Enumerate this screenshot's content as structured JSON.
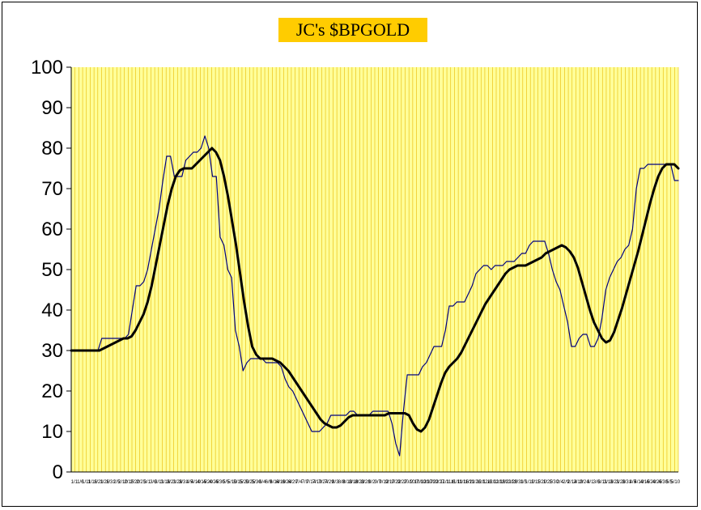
{
  "chart_data": {
    "type": "line",
    "title": "JC's $BPGOLD",
    "xlabel": "",
    "ylabel": "",
    "ylim": [
      0,
      100
    ],
    "yticks": [
      0,
      10,
      20,
      30,
      40,
      50,
      60,
      70,
      80,
      90,
      100
    ],
    "grid": "vertical lines",
    "legend": "none",
    "colors": {
      "plot_bg": "#ffff99",
      "grid": "#e8b800",
      "title_bg": "#ffcc00",
      "series_raw": "#000080",
      "series_smooth": "#000000"
    },
    "x_tick_labels": [
      "1/1",
      "1/6",
      "1/11",
      "1/16",
      "1/21",
      "1/26",
      "1/31",
      "2/5",
      "2/10",
      "2/15",
      "2/20",
      "2/25",
      "3/1",
      "3/6",
      "3/11",
      "3/16",
      "3/21",
      "3/26",
      "3/31",
      "4/5",
      "4/10",
      "4/15",
      "4/20",
      "4/25",
      "4/30",
      "5/5",
      "5/10",
      "5/15",
      "5/20",
      "5/25",
      "5/30",
      "6/4",
      "6/9",
      "6/14",
      "6/19",
      "6/24",
      "6/29",
      "7/4",
      "7/9",
      "7/14",
      "7/19",
      "7/24",
      "7/29",
      "8/3",
      "8/8",
      "8/13",
      "8/18",
      "8/23",
      "8/28",
      "9/2",
      "9/7",
      "9/12",
      "9/17",
      "9/22",
      "9/27",
      "10/2",
      "10/7",
      "10/12",
      "10/17",
      "10/22",
      "10/27",
      "11/1",
      "11/6",
      "11/11",
      "11/16",
      "11/21",
      "11/26",
      "12/1",
      "12/6",
      "12/11",
      "12/16",
      "12/21",
      "12/26",
      "12/31",
      "1/5",
      "1/10",
      "1/15",
      "1/20",
      "1/25",
      "1/30",
      "2/4",
      "2/9",
      "2/14",
      "2/19",
      "2/24",
      "3/1",
      "3/6",
      "3/11",
      "3/16",
      "3/21",
      "3/26",
      "3/31",
      "4/5",
      "4/10",
      "4/15",
      "4/20",
      "4/25",
      "4/30",
      "5/5",
      "5/10"
    ],
    "series": [
      {
        "values": [
          30,
          30,
          30,
          30,
          30,
          30,
          30,
          30,
          33,
          33,
          33,
          33,
          33,
          33,
          33,
          34,
          40,
          46,
          46,
          47,
          50,
          55,
          60,
          65,
          72,
          78,
          78,
          73,
          73,
          73,
          77,
          78,
          79,
          79,
          80,
          83,
          80,
          73,
          73,
          58,
          56,
          50,
          48,
          35,
          31,
          25,
          27,
          28,
          28,
          28,
          28,
          27,
          27,
          27,
          27,
          26,
          23,
          21,
          20,
          18,
          16,
          14,
          12,
          10,
          10,
          10,
          11,
          12,
          14,
          14,
          14,
          14,
          14,
          15,
          15,
          14,
          14,
          14,
          14,
          15,
          15,
          15,
          15,
          15,
          12,
          7,
          4,
          15,
          24,
          24,
          24,
          24,
          26,
          27,
          29,
          31,
          31,
          31,
          35,
          41,
          41,
          42,
          42,
          42,
          44,
          46,
          49,
          50,
          51,
          51,
          50,
          51,
          51,
          51,
          52,
          52,
          52,
          53,
          54,
          54,
          56,
          57,
          57,
          57,
          57,
          54,
          50,
          47,
          45,
          41,
          37,
          31,
          31,
          33,
          34,
          34,
          31,
          31,
          33,
          38,
          45,
          48,
          50,
          52,
          53,
          55,
          56,
          60,
          70,
          75,
          75,
          76,
          76,
          76,
          76,
          76,
          76,
          76,
          72,
          72
        ]
      },
      {
        "values": [
          30,
          30,
          30,
          30,
          30,
          30,
          30,
          30,
          30.5,
          31,
          31.5,
          32,
          32.5,
          33,
          33,
          33.5,
          35,
          37,
          39,
          42,
          46,
          51,
          56,
          61,
          66,
          70,
          73,
          74.5,
          75,
          75,
          75,
          76,
          77,
          78,
          79,
          80,
          79,
          77,
          73,
          68,
          62,
          56,
          49,
          42,
          36,
          31,
          29,
          28,
          28,
          28,
          28,
          27.5,
          27,
          26,
          25,
          23.5,
          22,
          20.5,
          19,
          17.5,
          16,
          14.5,
          13,
          12,
          11.5,
          11,
          11,
          11.5,
          12.5,
          13.5,
          14,
          14,
          14,
          14,
          14,
          14,
          14,
          14,
          14,
          14.5,
          14.5,
          14.5,
          14.5,
          14.5,
          14,
          12,
          10.5,
          10,
          11,
          13,
          16,
          19,
          22,
          24.5,
          26,
          27,
          28,
          29.5,
          31.5,
          33.5,
          35.5,
          37.5,
          39.5,
          41.5,
          43,
          44.5,
          46,
          47.5,
          49,
          50,
          50.5,
          51,
          51,
          51,
          51.5,
          52,
          52.5,
          53,
          54,
          54.5,
          55,
          55.5,
          56,
          55.5,
          54.5,
          53,
          50.5,
          47,
          43.5,
          40,
          37,
          35,
          33,
          32,
          32.5,
          34.5,
          37.5,
          40.5,
          44,
          47.5,
          51,
          54.5,
          58.5,
          62.5,
          66.5,
          70,
          73,
          75,
          76,
          76,
          76,
          75
        ]
      }
    ]
  }
}
